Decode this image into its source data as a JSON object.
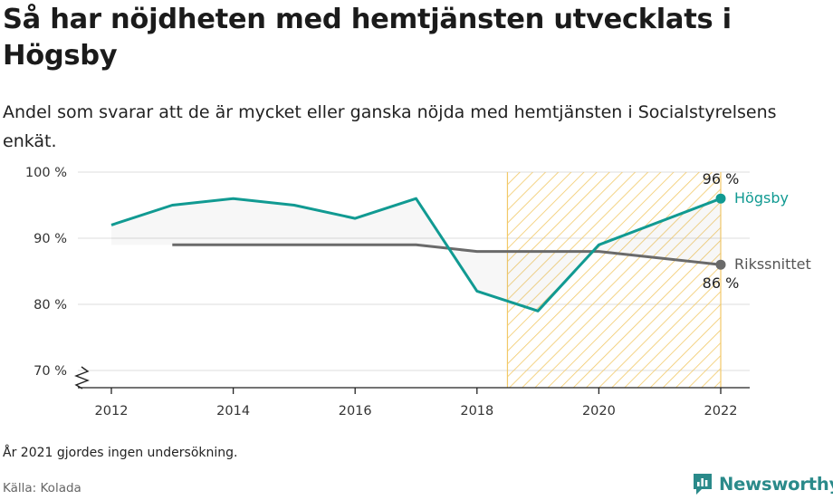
{
  "title": "Så har nöjdheten med hemtjänsten utvecklats i Högsby",
  "subtitle": "Andel som svarar att de är mycket eller ganska nöjda med hemtjänsten i Socialstyrelsens enkät.",
  "note": "År 2021 gjordes ingen undersökning.",
  "source": "Källa: Kolada",
  "brand": {
    "name": "Newsworthy",
    "icon": "newsworthy-logo-icon",
    "color": "#2a8a8a"
  },
  "chart_data": {
    "type": "line",
    "x": [
      2012,
      2013,
      2014,
      2015,
      2016,
      2017,
      2018,
      2019,
      2020,
      2022
    ],
    "series": [
      {
        "name": "Högsby",
        "color": "#119a92",
        "values": [
          92,
          95,
          96,
          95,
          93,
          96,
          82,
          79,
          89,
          96
        ],
        "end_label": "96 %"
      },
      {
        "name": "Rikssnittet",
        "color": "#6a6a6a",
        "values": [
          null,
          89,
          89,
          89,
          89,
          89,
          88,
          88,
          88,
          86
        ],
        "end_label": "86 %"
      }
    ],
    "xticks": [
      2012,
      2014,
      2016,
      2018,
      2020,
      2022
    ],
    "xtick_labels": [
      "2012",
      "2014",
      "2016",
      "2018",
      "2020",
      "2022"
    ],
    "yticks": [
      70,
      80,
      90,
      100
    ],
    "ytick_labels": [
      "70 %",
      "80 %",
      "90 %",
      "100 %"
    ],
    "xlim": [
      2011.6,
      2022.5
    ],
    "ylim": [
      67,
      100
    ],
    "axis_break": true,
    "highlight_band": {
      "from": 2018.5,
      "to": 2022,
      "color": "#f5c242"
    },
    "grid": true,
    "xlabel": "",
    "ylabel": ""
  }
}
